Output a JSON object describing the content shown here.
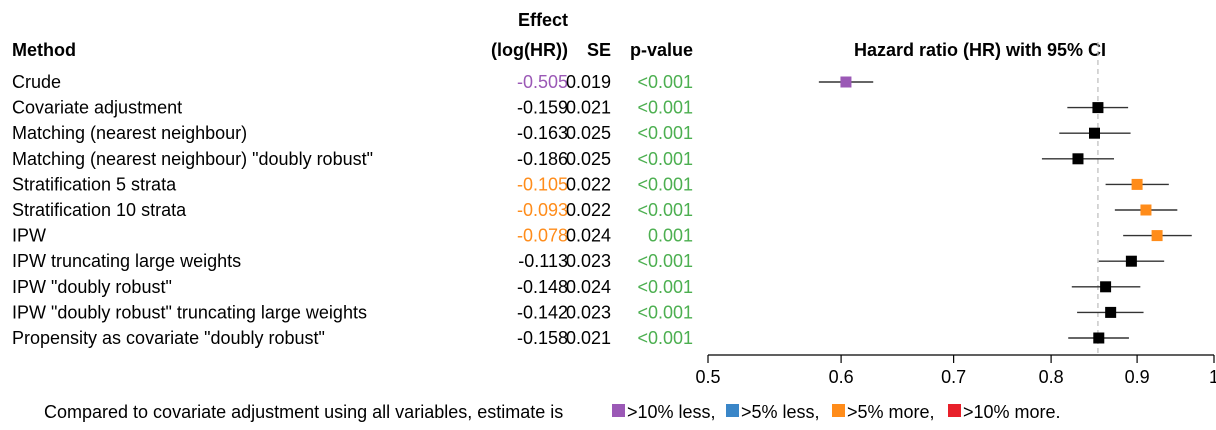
{
  "chart_data": {
    "type": "forest",
    "title": "Hazard ratio (HR) with 95% CI",
    "columns": {
      "method": "Method",
      "effect_line1": "Effect",
      "effect_line2": "(log(HR))",
      "se": "SE",
      "pvalue": "p-value"
    },
    "rows": [
      {
        "method": "Crude",
        "effect": "-0.505",
        "se": "0.019",
        "p": "<0.001",
        "hr": 0.604,
        "lo": 0.582,
        "hi": 0.627,
        "category": "less10"
      },
      {
        "method": "Covariate adjustment",
        "effect": "-0.159",
        "se": "0.021",
        "p": "<0.001",
        "hr": 0.853,
        "lo": 0.818,
        "hi": 0.889,
        "category": "none"
      },
      {
        "method": "Matching (nearest neighbour)",
        "effect": "-0.163",
        "se": "0.025",
        "p": "<0.001",
        "hr": 0.849,
        "lo": 0.809,
        "hi": 0.892,
        "category": "none"
      },
      {
        "method": "Matching (nearest neighbour) \"doubly robust\"",
        "effect": "-0.186",
        "se": "0.025",
        "p": "<0.001",
        "hr": 0.83,
        "lo": 0.79,
        "hi": 0.872,
        "category": "none"
      },
      {
        "method": "Stratification 5 strata",
        "effect": "-0.105",
        "se": "0.022",
        "p": "<0.001",
        "hr": 0.9,
        "lo": 0.862,
        "hi": 0.94,
        "category": "more5"
      },
      {
        "method": "Stratification 10 strata",
        "effect": "-0.093",
        "se": "0.022",
        "p": "<0.001",
        "hr": 0.911,
        "lo": 0.873,
        "hi": 0.951,
        "category": "more5"
      },
      {
        "method": "IPW",
        "effect": "-0.078",
        "se": "0.024",
        "p": "0.001",
        "hr": 0.925,
        "lo": 0.883,
        "hi": 0.97,
        "category": "more5"
      },
      {
        "method": "IPW truncating large weights",
        "effect": "-0.113",
        "se": "0.023",
        "p": "<0.001",
        "hr": 0.893,
        "lo": 0.854,
        "hi": 0.934,
        "category": "none"
      },
      {
        "method": "IPW \"doubly robust\"",
        "effect": "-0.148",
        "se": "0.024",
        "p": "<0.001",
        "hr": 0.862,
        "lo": 0.823,
        "hi": 0.904,
        "category": "none"
      },
      {
        "method": "IPW \"doubly robust\" truncating large weights",
        "effect": "-0.142",
        "se": "0.023",
        "p": "<0.001",
        "hr": 0.868,
        "lo": 0.829,
        "hi": 0.908,
        "category": "none"
      },
      {
        "method": "Propensity as covariate \"doubly robust\"",
        "effect": "-0.158",
        "se": "0.021",
        "p": "<0.001",
        "hr": 0.854,
        "lo": 0.819,
        "hi": 0.89,
        "category": "none"
      }
    ],
    "reference_hr": 0.853,
    "x_ticks": [
      0.5,
      0.6,
      0.7,
      0.8,
      0.9,
      1.0
    ],
    "x_tick_labels": [
      "0.5",
      "0.6",
      "0.7",
      "0.8",
      "0.9",
      "1"
    ],
    "xlim": [
      0.5,
      1.0
    ],
    "scale": "log",
    "colors": {
      "less10": "#9b59b6",
      "less5": "#3a86c8",
      "more5": "#ff8c1a",
      "more10": "#e8202a",
      "none": "#000000",
      "pvalue": "#4caf50",
      "ci_line": "#333333",
      "ref_line": "#bbbbbb"
    },
    "footnote": {
      "prefix": "Compared to covariate adjustment using all variables, estimate is",
      "items": [
        {
          "key": "less10",
          "label": ">10% less,"
        },
        {
          "key": "less5",
          "label": ">5% less,"
        },
        {
          "key": "more5",
          "label": ">5% more,"
        },
        {
          "key": "more10",
          "label": ">10% more."
        }
      ]
    }
  }
}
